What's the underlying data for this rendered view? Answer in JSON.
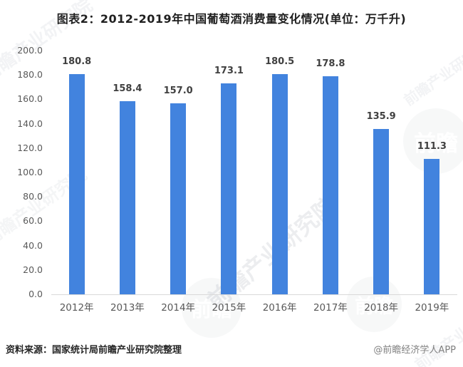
{
  "page": {
    "title": "图表2：2012-2019年中国葡萄酒消费量变化情况(单位：万千升)"
  },
  "chart_data": {
    "type": "bar",
    "title": "图表2：2012-2019年中国葡萄酒消费量变化情况",
    "unit": "万千升",
    "categories": [
      "2012年",
      "2013年",
      "2014年",
      "2015年",
      "2016年",
      "2017年",
      "2018年",
      "2019年"
    ],
    "values": [
      180.8,
      158.4,
      157.0,
      173.1,
      180.5,
      178.8,
      135.9,
      111.3
    ],
    "value_labels": [
      "180.8",
      "158.4",
      "157.0",
      "173.1",
      "180.5",
      "178.8",
      "135.9",
      "111.3"
    ],
    "y_ticks": [
      "0.0",
      "20.0",
      "40.0",
      "60.0",
      "80.0",
      "100.0",
      "120.0",
      "140.0",
      "160.0",
      "180.0",
      "200.0"
    ],
    "ylim": [
      0,
      200
    ],
    "xlabel": "",
    "ylabel": "",
    "grid": false,
    "legend": "none",
    "bar_color": "#4283de",
    "axis_line_color": "#d9d9d9",
    "tick_label_color": "#595959",
    "value_label_color": "#404040"
  },
  "watermark": {
    "text": "前瞻产业研究院",
    "logo_text": "前瞻"
  },
  "footer": {
    "source": "资料来源：国家统计局前瞻产业研究院整理",
    "credit": "@前瞻经济学人APP"
  }
}
